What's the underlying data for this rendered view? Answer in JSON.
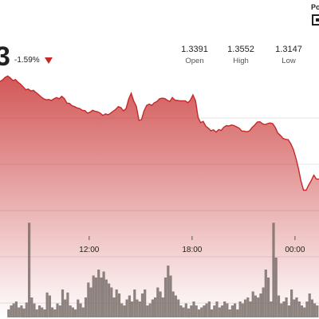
{
  "header": {
    "price_fragment": "3",
    "change": "-1.59%",
    "change_direction": "down",
    "change_color": "#c62828",
    "powered_fragment": "Po",
    "logo_icon": "brand-logo-icon"
  },
  "stats": [
    {
      "value": "1.3391",
      "label": "Open"
    },
    {
      "value": "1.3552",
      "label": "High"
    },
    {
      "value": "1.3147",
      "label": "Low"
    }
  ],
  "chart_data": {
    "type": "area",
    "x_tick_labels": [
      "12:00",
      "18:00",
      "00:00"
    ],
    "x_ticks_hour": [
      12,
      18,
      24
    ],
    "x_range_hours": [
      6.8,
      25.4
    ],
    "ylim": [
      1.313,
      1.356
    ],
    "line_color": "#c62828",
    "fill_color": "#c62828",
    "grid": true,
    "price": {
      "x": [
        6.8,
        6.95,
        7.1,
        7.25,
        7.4,
        7.55,
        7.7,
        7.85,
        8.0,
        8.15,
        8.3,
        8.45,
        8.6,
        8.75,
        8.9,
        9.05,
        9.2,
        9.35,
        9.5,
        9.65,
        9.8,
        9.95,
        10.1,
        10.25,
        10.4,
        10.55,
        10.7,
        10.85,
        11.0,
        11.15,
        11.3,
        11.45,
        11.6,
        11.75,
        11.9,
        12.05,
        12.2,
        12.35,
        12.5,
        12.65,
        12.8,
        12.95,
        13.1,
        13.25,
        13.4,
        13.55,
        13.7,
        13.85,
        14.0,
        14.15,
        14.3,
        14.45,
        14.6,
        14.75,
        14.9,
        15.05,
        15.2,
        15.35,
        15.5,
        15.65,
        15.8,
        15.95,
        16.1,
        16.25,
        16.4,
        16.55,
        16.7,
        16.85,
        17.0,
        17.15,
        17.3,
        17.45,
        17.6,
        17.75,
        17.9,
        18.05,
        18.2,
        18.35,
        18.5,
        18.65,
        18.8,
        18.95,
        19.1,
        19.25,
        19.4,
        19.55,
        19.7,
        19.85,
        20.0,
        20.15,
        20.3,
        20.45,
        20.6,
        20.75,
        20.9,
        21.05,
        21.2,
        21.35,
        21.5,
        21.65,
        21.8,
        21.95,
        22.1,
        22.25,
        22.4,
        22.55,
        22.7,
        22.85,
        23.0,
        23.15,
        23.3,
        23.45,
        23.6,
        23.75,
        23.9,
        24.05,
        24.2,
        24.35,
        24.5,
        24.65,
        24.8,
        24.95,
        25.1,
        25.25,
        25.4
      ],
      "y": [
        1.3535,
        1.354,
        1.3548,
        1.3552,
        1.3546,
        1.3538,
        1.3541,
        1.3533,
        1.3527,
        1.3519,
        1.351,
        1.3512,
        1.3506,
        1.3508,
        1.3501,
        1.3495,
        1.3488,
        1.3482,
        1.3479,
        1.348,
        1.3477,
        1.3482,
        1.3486,
        1.3482,
        1.349,
        1.3483,
        1.3469,
        1.3468,
        1.3461,
        1.3458,
        1.3454,
        1.3452,
        1.3447,
        1.3446,
        1.3438,
        1.3441,
        1.3447,
        1.3444,
        1.3442,
        1.3438,
        1.3431,
        1.3436,
        1.3433,
        1.3438,
        1.3444,
        1.345,
        1.3458,
        1.3455,
        1.3445,
        1.3452,
        1.3481,
        1.3499,
        1.3475,
        1.3459,
        1.3416,
        1.3418,
        1.3445,
        1.3462,
        1.3466,
        1.3462,
        1.347,
        1.3474,
        1.3482,
        1.3484,
        1.3483,
        1.3478,
        1.3474,
        1.3486,
        1.3478,
        1.3477,
        1.3476,
        1.3476,
        1.3476,
        1.347,
        1.3478,
        1.3494,
        1.3476,
        1.3425,
        1.3409,
        1.3413,
        1.3398,
        1.3392,
        1.3384,
        1.3387,
        1.338,
        1.3388,
        1.3385,
        1.3395,
        1.34,
        1.3399,
        1.3402,
        1.34,
        1.3396,
        1.3392,
        1.3383,
        1.3383,
        1.3381,
        1.3384,
        1.3394,
        1.3402,
        1.3411,
        1.3412,
        1.3406,
        1.3403,
        1.3406,
        1.3408,
        1.3406,
        1.3394,
        1.3377,
        1.337,
        1.3361,
        1.3358,
        1.3357,
        1.3345,
        1.3328,
        1.3301,
        1.3269,
        1.323,
        1.3202,
        1.3202,
        1.3218,
        1.3232,
        1.3248,
        1.3236,
        1.3236
      ]
    },
    "volume": {
      "x": [
        7.3,
        7.45,
        7.6,
        7.75,
        7.9,
        8.05,
        8.2,
        8.35,
        8.5,
        8.65,
        8.8,
        8.95,
        9.1,
        9.25,
        9.4,
        9.55,
        9.7,
        9.85,
        10.0,
        10.15,
        10.3,
        10.45,
        10.6,
        10.75,
        10.9,
        11.05,
        11.2,
        11.35,
        11.5,
        11.65,
        11.8,
        11.95,
        12.1,
        12.25,
        12.4,
        12.55,
        12.7,
        12.85,
        13.0,
        13.15,
        13.3,
        13.45,
        13.6,
        13.75,
        13.9,
        14.05,
        14.2,
        14.35,
        14.5,
        14.65,
        14.8,
        14.95,
        15.1,
        15.25,
        15.4,
        15.55,
        15.7,
        15.85,
        16.0,
        16.15,
        16.3,
        16.45,
        16.6,
        16.75,
        16.9,
        17.05,
        17.2,
        17.35,
        17.5,
        17.65,
        17.8,
        17.95,
        18.1,
        18.25,
        18.4,
        18.55,
        18.7,
        18.85,
        19.0,
        19.15,
        19.3,
        19.45,
        19.6,
        19.75,
        19.9,
        20.05,
        20.2,
        20.35,
        20.5,
        20.65,
        20.8,
        20.95,
        21.1,
        21.25,
        21.4,
        21.55,
        21.7,
        21.85,
        22.0,
        22.15,
        22.3,
        22.45,
        22.6,
        22.75,
        22.9,
        23.05,
        23.2,
        23.35,
        23.5,
        23.65,
        23.8,
        23.95,
        24.1,
        24.25,
        24.4,
        24.55,
        24.7,
        24.85,
        25.0,
        25.15,
        25.3
      ],
      "values": [
        0.08,
        0.12,
        0.14,
        0.16,
        0.1,
        0.12,
        0.09,
        0.15,
        0.95,
        0.2,
        0.14,
        0.08,
        0.12,
        0.1,
        0.08,
        0.25,
        0.22,
        0.1,
        0.08,
        0.14,
        0.12,
        0.28,
        0.18,
        0.25,
        0.12,
        0.1,
        0.08,
        0.18,
        0.14,
        0.1,
        0.2,
        0.35,
        0.3,
        0.42,
        0.4,
        0.48,
        0.4,
        0.46,
        0.38,
        0.34,
        0.3,
        0.2,
        0.28,
        0.24,
        0.14,
        0.12,
        0.18,
        0.22,
        0.16,
        0.28,
        0.18,
        0.16,
        0.24,
        0.28,
        0.12,
        0.14,
        0.18,
        0.2,
        0.3,
        0.26,
        0.2,
        0.4,
        0.52,
        0.42,
        0.26,
        0.22,
        0.18,
        0.12,
        0.1,
        0.14,
        0.09,
        0.12,
        0.16,
        0.12,
        0.08,
        0.1,
        0.12,
        0.14,
        0.16,
        0.08,
        0.12,
        0.16,
        0.1,
        0.12,
        0.16,
        0.14,
        0.08,
        0.12,
        0.14,
        0.08,
        0.16,
        0.14,
        0.18,
        0.2,
        0.16,
        0.26,
        0.22,
        0.2,
        0.24,
        0.3,
        0.48,
        0.4,
        0.16,
        0.95,
        0.6,
        0.22,
        0.14,
        0.16,
        0.2,
        0.12,
        0.28,
        0.18,
        0.2,
        0.16,
        0.12,
        0.1,
        0.16,
        0.24,
        0.18,
        0.14,
        0.12
      ]
    }
  }
}
